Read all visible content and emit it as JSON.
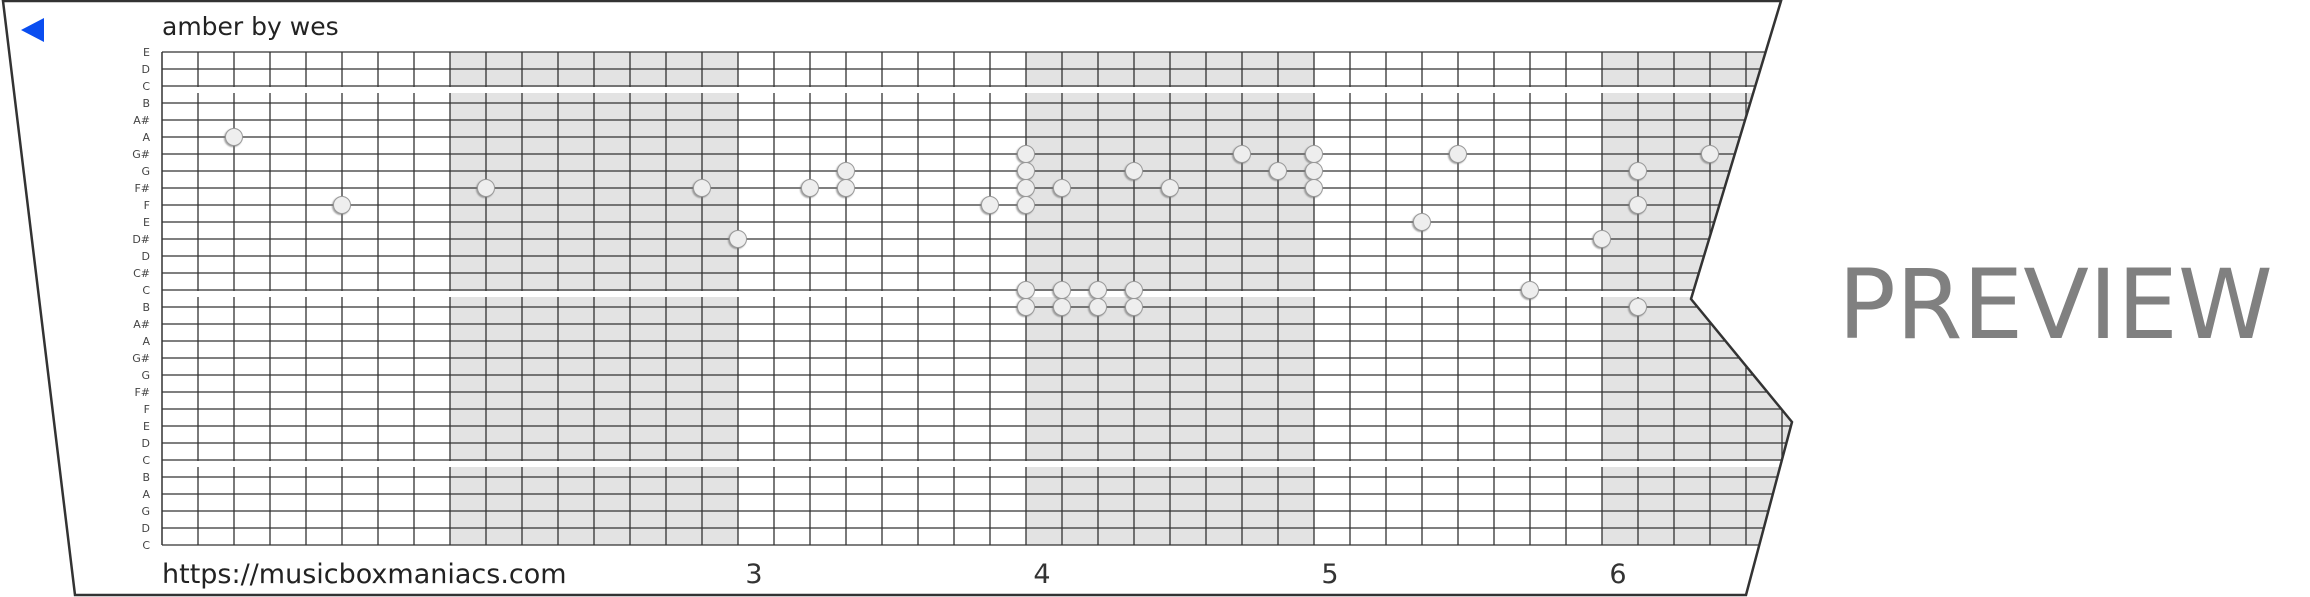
{
  "title": "amber by wes",
  "url": "https://musicboxmaniacs.com",
  "watermark": "PREVIEW",
  "back_icon": "play-backward-triangle-icon",
  "colors": {
    "back_icon": "#0a4df0",
    "shade": "#e3e3e3",
    "grid": "#333333",
    "note_fill": "#eeeeee",
    "note_stroke": "#999999",
    "watermark": "#808080"
  },
  "pitch_labels": [
    "E",
    "D",
    "C",
    "B",
    "A#",
    "A",
    "G#",
    "G",
    "F#",
    "F",
    "E",
    "D#",
    "D",
    "C#",
    "C",
    "B",
    "A#",
    "A",
    "G#",
    "G",
    "F#",
    "F",
    "E",
    "D",
    "C",
    "B",
    "A",
    "G",
    "D",
    "C"
  ],
  "beats_per_measure": 8,
  "shaded_measures": [
    2,
    4,
    6
  ],
  "measure_labels": [
    {
      "measure": 3,
      "label": "3"
    },
    {
      "measure": 4,
      "label": "4"
    },
    {
      "measure": 5,
      "label": "5"
    },
    {
      "measure": 6,
      "label": "6"
    }
  ],
  "notes": [
    {
      "beat": 2,
      "pitch_index": 5
    },
    {
      "beat": 5,
      "pitch_index": 9
    },
    {
      "beat": 9,
      "pitch_index": 8
    },
    {
      "beat": 15,
      "pitch_index": 8
    },
    {
      "beat": 16,
      "pitch_index": 11
    },
    {
      "beat": 18,
      "pitch_index": 8
    },
    {
      "beat": 19,
      "pitch_index": 7
    },
    {
      "beat": 19,
      "pitch_index": 8
    },
    {
      "beat": 23,
      "pitch_index": 9
    },
    {
      "beat": 24,
      "pitch_index": 6
    },
    {
      "beat": 24,
      "pitch_index": 7
    },
    {
      "beat": 24,
      "pitch_index": 8
    },
    {
      "beat": 24,
      "pitch_index": 9
    },
    {
      "beat": 24,
      "pitch_index": 14
    },
    {
      "beat": 24,
      "pitch_index": 15
    },
    {
      "beat": 25,
      "pitch_index": 8
    },
    {
      "beat": 25,
      "pitch_index": 14
    },
    {
      "beat": 25,
      "pitch_index": 15
    },
    {
      "beat": 26,
      "pitch_index": 14
    },
    {
      "beat": 26,
      "pitch_index": 15
    },
    {
      "beat": 27,
      "pitch_index": 7
    },
    {
      "beat": 27,
      "pitch_index": 14
    },
    {
      "beat": 27,
      "pitch_index": 15
    },
    {
      "beat": 28,
      "pitch_index": 8
    },
    {
      "beat": 30,
      "pitch_index": 6
    },
    {
      "beat": 31,
      "pitch_index": 7
    },
    {
      "beat": 32,
      "pitch_index": 6
    },
    {
      "beat": 32,
      "pitch_index": 7
    },
    {
      "beat": 32,
      "pitch_index": 8
    },
    {
      "beat": 35,
      "pitch_index": 10
    },
    {
      "beat": 36,
      "pitch_index": 6
    },
    {
      "beat": 38,
      "pitch_index": 14
    },
    {
      "beat": 40,
      "pitch_index": 11
    },
    {
      "beat": 41,
      "pitch_index": 7
    },
    {
      "beat": 41,
      "pitch_index": 9
    },
    {
      "beat": 41,
      "pitch_index": 15
    },
    {
      "beat": 43,
      "pitch_index": 6
    }
  ]
}
